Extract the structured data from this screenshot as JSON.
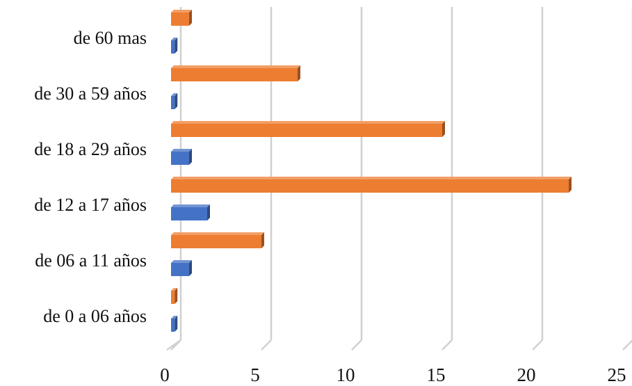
{
  "chart_data": {
    "type": "bar",
    "orientation": "horizontal",
    "style": "3d",
    "categories": [
      "de 0 a 06 años",
      "de 06 a 11 años",
      "de 12 a 17 años",
      "de 18 a 29 años",
      "de 30 a 59 años",
      "de 60  mas"
    ],
    "series": [
      {
        "values": [
          0.2,
          1,
          2,
          1,
          0.2,
          0.2
        ],
        "color": "#4472c4"
      },
      {
        "values": [
          0.2,
          5,
          22,
          15,
          7,
          1
        ],
        "color": "#ed7d31"
      }
    ],
    "xlim": [
      0,
      25
    ],
    "xticks": [
      "0",
      "5",
      "10",
      "15",
      "20",
      "25"
    ],
    "title": "",
    "xlabel": "",
    "ylabel": "",
    "grid": true,
    "legend": "none"
  }
}
